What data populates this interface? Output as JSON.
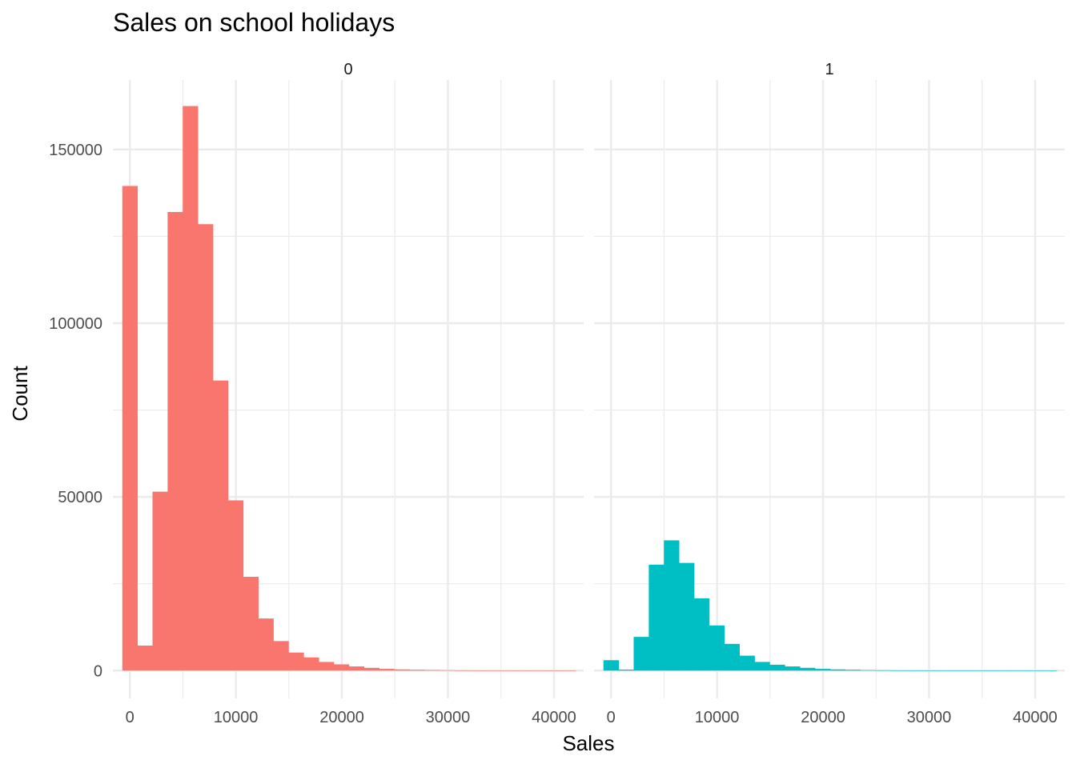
{
  "chart_data": {
    "type": "bar",
    "title": "Sales on school holidays",
    "xlabel": "Sales",
    "ylabel": "Count",
    "xlim": [
      -1600,
      42800
    ],
    "ylim": [
      -8000,
      170000
    ],
    "x_ticks": [
      0,
      10000,
      20000,
      30000,
      40000
    ],
    "x_tick_labels": [
      "0",
      "10000",
      "20000",
      "30000",
      "40000"
    ],
    "y_ticks": [
      0,
      50000,
      100000,
      150000
    ],
    "y_tick_labels": [
      "0",
      "50000",
      "100000",
      "150000"
    ],
    "grid": true,
    "bin_width": 1425,
    "bin_centers": [
      0,
      1425,
      2850,
      4275,
      5700,
      7125,
      8550,
      9975,
      11400,
      12825,
      14250,
      15675,
      17100,
      18525,
      19950,
      21375,
      22800,
      24225,
      25650,
      27075,
      28500,
      29925,
      31350,
      32775,
      34200,
      35625,
      37050,
      38475,
      39900,
      41325
    ],
    "panels": [
      {
        "label": "0",
        "color": "#F8766D",
        "values": [
          139500,
          7200,
          51500,
          132000,
          162500,
          128500,
          83500,
          49000,
          27000,
          15000,
          8500,
          5200,
          3800,
          2500,
          1800,
          1200,
          800,
          500,
          350,
          250,
          180,
          120,
          80,
          50,
          30,
          20,
          10,
          5,
          3,
          2
        ]
      },
      {
        "label": "1",
        "color": "#00BFC4",
        "values": [
          3000,
          300,
          9700,
          30500,
          37500,
          31000,
          20800,
          13000,
          7700,
          4300,
          2500,
          1700,
          1200,
          800,
          500,
          350,
          250,
          150,
          100,
          70,
          40,
          25,
          15,
          10,
          5,
          3,
          2,
          1,
          1,
          1
        ]
      }
    ]
  },
  "colors": {
    "grid": "#EBEBEB",
    "text": "#4D4D4D"
  }
}
